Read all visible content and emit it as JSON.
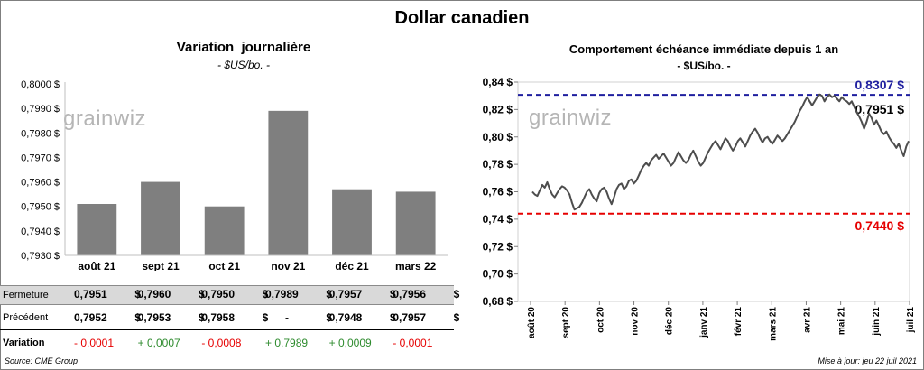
{
  "title": "Dollar canadien",
  "source": "Source: CME Group",
  "updated": "Mise à jour: jeu 22 juil 2021",
  "watermark": "grainwiz",
  "colors": {
    "bar": "#7f7f7f",
    "line": "#4d4d4d",
    "max": "#1f1f9f",
    "min": "#e60000",
    "up": "#2e8b2e",
    "down": "#e60000"
  },
  "chart_data": [
    {
      "type": "bar",
      "title": "Variation  journalière",
      "subtitle": "- $US/bo. -",
      "categories": [
        "août 21",
        "sept 21",
        "oct 21",
        "nov 21",
        "déc 21",
        "mars 22"
      ],
      "values": [
        0.7951,
        0.796,
        0.795,
        0.7989,
        0.7957,
        0.7956
      ],
      "ylim": [
        0.793,
        0.8
      ],
      "yticks": [
        "0,7930 $",
        "0,7940 $",
        "0,7950 $",
        "0,7960 $",
        "0,7970 $",
        "0,7980 $",
        "0,7990 $",
        "0,8000 $"
      ],
      "table": {
        "rows": [
          {
            "label": "Fermeture",
            "values": [
              "0,7951",
              "0,7960",
              "0,7950",
              "0,7989",
              "0,7957",
              "0,7956"
            ],
            "currency": "$"
          },
          {
            "label": "Précédent",
            "values": [
              "0,7952",
              "0,7953",
              "0,7958",
              "-",
              "0,7948",
              "0,7957"
            ],
            "currency": "$"
          },
          {
            "label": "Variation",
            "values": [
              "- 0,0001",
              "+ 0,0007",
              "- 0,0008",
              "+ 0,7989",
              "+ 0,0009",
              "- 0,0001"
            ],
            "signs": [
              "down",
              "up",
              "down",
              "up",
              "up",
              "down"
            ]
          }
        ]
      }
    },
    {
      "type": "line",
      "title": "Comportement échéance immédiate depuis 1 an",
      "subtitle": "- $US/bo. -",
      "ylim": [
        0.68,
        0.84
      ],
      "yticks": [
        "0,68 $",
        "0,70 $",
        "0,72 $",
        "0,74 $",
        "0,76 $",
        "0,78 $",
        "0,80 $",
        "0,82 $",
        "0,84 $"
      ],
      "xticks": [
        "août 20",
        "sept 20",
        "oct 20",
        "nov 20",
        "déc 20",
        "janv 21",
        "févr 21",
        "mars 21",
        "avr 21",
        "mai 21",
        "juin 21",
        "juil 21"
      ],
      "max_value": 0.8307,
      "max_label": "0,8307 $",
      "min_value": 0.744,
      "min_label": "0,7440 $",
      "last_label": "0,7951 $",
      "series": [
        {
          "values": [
            0.76,
            0.758,
            0.757,
            0.761,
            0.765,
            0.763,
            0.767,
            0.762,
            0.758,
            0.756,
            0.759,
            0.762,
            0.764,
            0.763,
            0.761,
            0.758,
            0.752,
            0.747,
            0.748,
            0.749,
            0.752,
            0.756,
            0.76,
            0.762,
            0.758,
            0.755,
            0.753,
            0.759,
            0.762,
            0.763,
            0.76,
            0.755,
            0.751,
            0.756,
            0.762,
            0.765,
            0.766,
            0.762,
            0.764,
            0.768,
            0.769,
            0.766,
            0.768,
            0.772,
            0.776,
            0.779,
            0.781,
            0.779,
            0.783,
            0.785,
            0.787,
            0.784,
            0.786,
            0.788,
            0.785,
            0.782,
            0.779,
            0.781,
            0.785,
            0.789,
            0.786,
            0.783,
            0.781,
            0.783,
            0.787,
            0.79,
            0.786,
            0.782,
            0.779,
            0.781,
            0.785,
            0.789,
            0.792,
            0.795,
            0.797,
            0.794,
            0.791,
            0.795,
            0.799,
            0.797,
            0.793,
            0.79,
            0.793,
            0.797,
            0.799,
            0.796,
            0.793,
            0.797,
            0.801,
            0.804,
            0.806,
            0.803,
            0.799,
            0.796,
            0.799,
            0.8,
            0.797,
            0.795,
            0.798,
            0.801,
            0.799,
            0.797,
            0.799,
            0.802,
            0.805,
            0.808,
            0.811,
            0.815,
            0.819,
            0.822,
            0.826,
            0.829,
            0.826,
            0.823,
            0.826,
            0.829,
            0.831,
            0.83,
            0.826,
            0.829,
            0.831,
            0.829,
            0.83,
            0.828,
            0.826,
            0.829,
            0.827,
            0.826,
            0.824,
            0.826,
            0.822,
            0.818,
            0.815,
            0.811,
            0.806,
            0.811,
            0.817,
            0.814,
            0.809,
            0.812,
            0.808,
            0.804,
            0.802,
            0.804,
            0.8,
            0.797,
            0.795,
            0.792,
            0.795,
            0.79,
            0.786,
            0.793,
            0.797
          ]
        }
      ]
    }
  ]
}
